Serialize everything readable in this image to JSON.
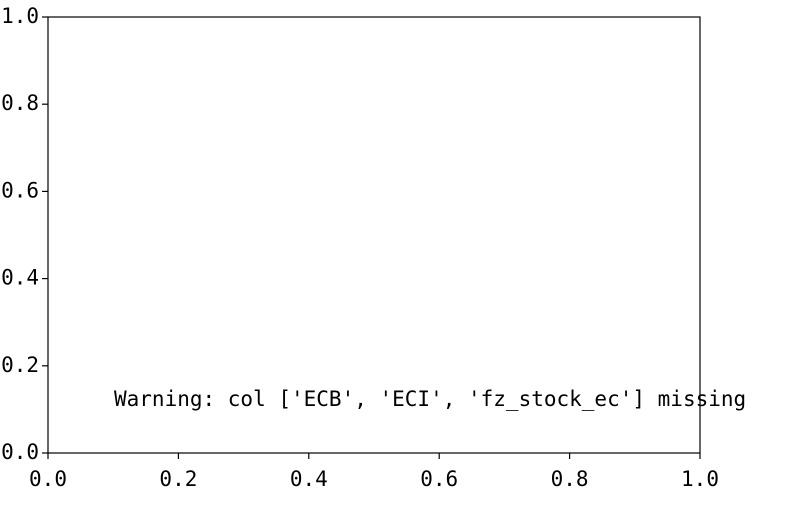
{
  "chart_data": {
    "type": "line",
    "annotations": [
      "Warning: col ['ECB', 'ECI', 'fz_stock_ec'] missing"
    ],
    "xlim": [
      0,
      1
    ],
    "ylim": [
      0,
      1
    ],
    "xticks": [
      {
        "value": 0,
        "label": "0.0"
      },
      {
        "value": 0.2,
        "label": "0.2"
      },
      {
        "value": 0.4,
        "label": "0.4"
      },
      {
        "value": 0.6,
        "label": "0.6"
      },
      {
        "value": 0.8,
        "label": "0.8"
      },
      {
        "value": 1,
        "label": "1.0"
      }
    ],
    "yticks": [
      {
        "value": 0,
        "label": "0.0"
      },
      {
        "value": 0.2,
        "label": "0.2"
      },
      {
        "value": 0.4,
        "label": "0.4"
      },
      {
        "value": 0.6,
        "label": "0.6"
      },
      {
        "value": 0.8,
        "label": "0.8"
      },
      {
        "value": 1,
        "label": "1.0"
      }
    ],
    "grid": false
  }
}
